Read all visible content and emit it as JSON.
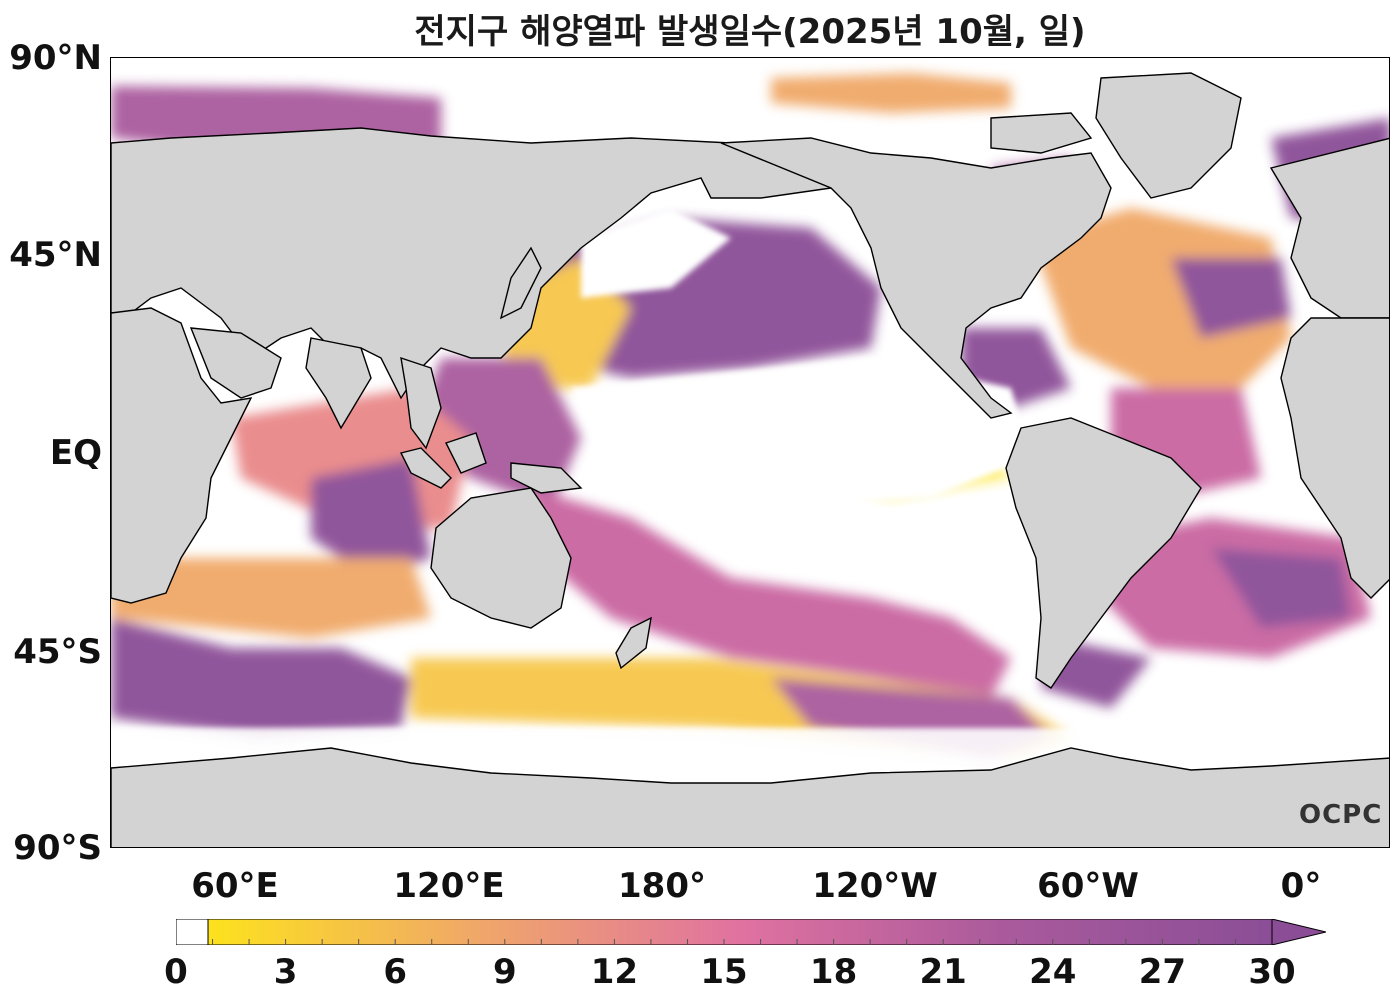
{
  "title": "전지구 해양열파 발생일수(2025년 10월, 일)",
  "map": {
    "lat_labels": [
      {
        "text": "90°N",
        "lat": 90
      },
      {
        "text": "45°N",
        "lat": 45
      },
      {
        "text": "EQ",
        "lat": 0
      },
      {
        "text": "45°S",
        "lat": -45
      },
      {
        "text": "90°S",
        "lat": -90
      }
    ],
    "lon_labels": [
      {
        "text": "60°E",
        "lon": 60
      },
      {
        "text": "120°E",
        "lon": 120
      },
      {
        "text": "180°",
        "lon": 180
      },
      {
        "text": "120°W",
        "lon": 240
      },
      {
        "text": "60°W",
        "lon": 300
      },
      {
        "text": "0°",
        "lon": 360
      }
    ],
    "land_color": "#d3d3d3",
    "ocean_color": "#ffffff",
    "watermark": "OCPC"
  },
  "colorbar": {
    "ticks": [
      "0",
      "3",
      "6",
      "9",
      "12",
      "15",
      "18",
      "21",
      "24",
      "27",
      "30"
    ],
    "min": 0,
    "max": 30,
    "extend": "max",
    "colors": [
      "#ffffff",
      "#fde21d",
      "#f7c64a",
      "#f0a868",
      "#e98788",
      "#e072a0",
      "#c965a0",
      "#a95a9c",
      "#8b4e96"
    ]
  }
}
